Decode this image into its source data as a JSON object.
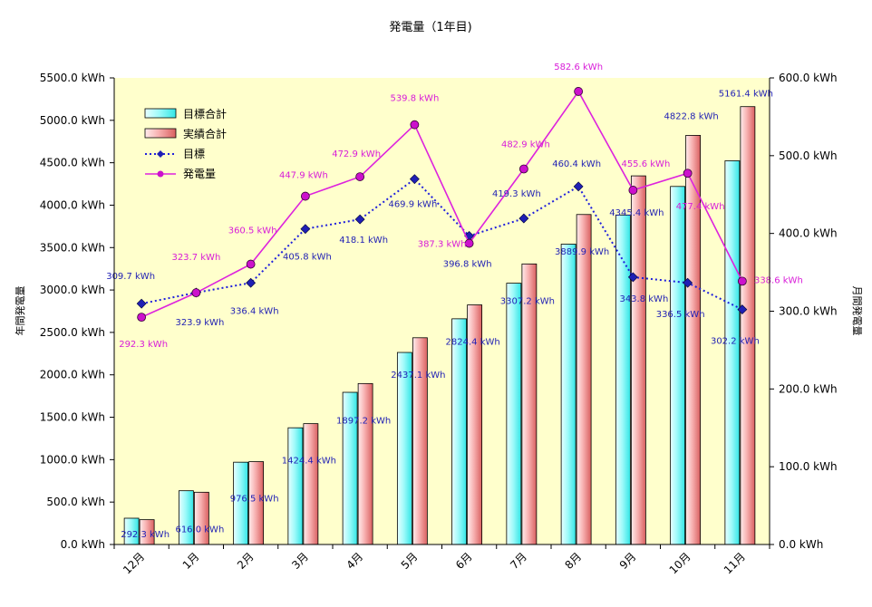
{
  "chart_data": {
    "type": "bar",
    "title": "発電量（1年目)",
    "ylabel_left": "年間発電量",
    "ylabel_right": "月間発電量",
    "categories": [
      "12月",
      "1月",
      "2月",
      "3月",
      "4月",
      "5月",
      "6月",
      "7月",
      "8月",
      "9月",
      "10月",
      "11月"
    ],
    "left_axis": {
      "ylim": [
        0,
        5500
      ],
      "ticks": [
        "0.0 kWh",
        "500.0 kWh",
        "1000.0 kWh",
        "1500.0 kWh",
        "2000.0 kWh",
        "2500.0 kWh",
        "3000.0 kWh",
        "3500.0 kWh",
        "4000.0 kWh",
        "4500.0 kWh",
        "5000.0 kWh",
        "5500.0 kWh"
      ]
    },
    "right_axis": {
      "ylim": [
        0,
        600
      ],
      "ticks": [
        "0.0 kWh",
        "100.0 kWh",
        "200.0 kWh",
        "300.0 kWh",
        "400.0 kWh",
        "500.0 kWh",
        "600.0 kWh"
      ]
    },
    "series": [
      {
        "name": "目標合計",
        "axis": "left",
        "kind": "bar",
        "color": "#7ff6f6",
        "values": [
          309.7,
          633.6,
          970.0,
          1375.8,
          1793.9,
          2263.8,
          2660.6,
          3079.9,
          3540.3,
          3884.1,
          4220.6,
          4522.8
        ]
      },
      {
        "name": "実績合計",
        "axis": "left",
        "kind": "bar",
        "color": "#f2a1a1",
        "values": [
          292.3,
          616.0,
          976.5,
          1424.4,
          1897.2,
          2437.1,
          2824.4,
          3307.2,
          3889.9,
          4345.4,
          4822.8,
          5161.4
        ]
      },
      {
        "name": "目標",
        "axis": "right",
        "kind": "line",
        "color": "#1f1fdc",
        "values": [
          309.7,
          323.9,
          336.4,
          405.8,
          418.1,
          469.9,
          396.8,
          419.3,
          460.4,
          343.8,
          336.5,
          302.2
        ]
      },
      {
        "name": "発電量",
        "axis": "right",
        "kind": "line",
        "color": "#dd22dd",
        "values": [
          292.3,
          323.7,
          360.5,
          447.9,
          472.9,
          539.8,
          387.3,
          482.9,
          582.6,
          455.6,
          477.4,
          338.6
        ]
      }
    ],
    "annotations": {
      "cumulative_labels": [
        "292.3 kWh",
        "616.0 kWh",
        "976.5 kWh",
        "1424.4 kWh",
        "1897.2 kWh",
        "2437.1 kWh",
        "2824.4 kWh",
        "3307.2 kWh",
        "3889.9 kWh",
        "4345.4 kWh",
        "4822.8 kWh",
        "5161.4 kWh"
      ],
      "target_labels": [
        "309.7 kWh",
        "323.9 kWh",
        "336.4 kWh",
        "405.8 kWh",
        "418.1 kWh",
        "469.9 kWh",
        "396.8 kWh",
        "419.3 kWh",
        "460.4 kWh",
        "343.8 kWh",
        "336.5 kWh",
        "302.2 kWh"
      ],
      "actual_labels": [
        "292.3 kWh",
        "323.7 kWh",
        "360.5 kWh",
        "447.9 kWh",
        "472.9 kWh",
        "539.8 kWh",
        "387.3 kWh",
        "482.9 kWh",
        "582.6 kWh",
        "455.6 kWh",
        "477.4 kWh",
        "338.6 kWh"
      ]
    },
    "legend_placement": "top-left",
    "plot_background": "#ffffcc",
    "grid": false
  }
}
